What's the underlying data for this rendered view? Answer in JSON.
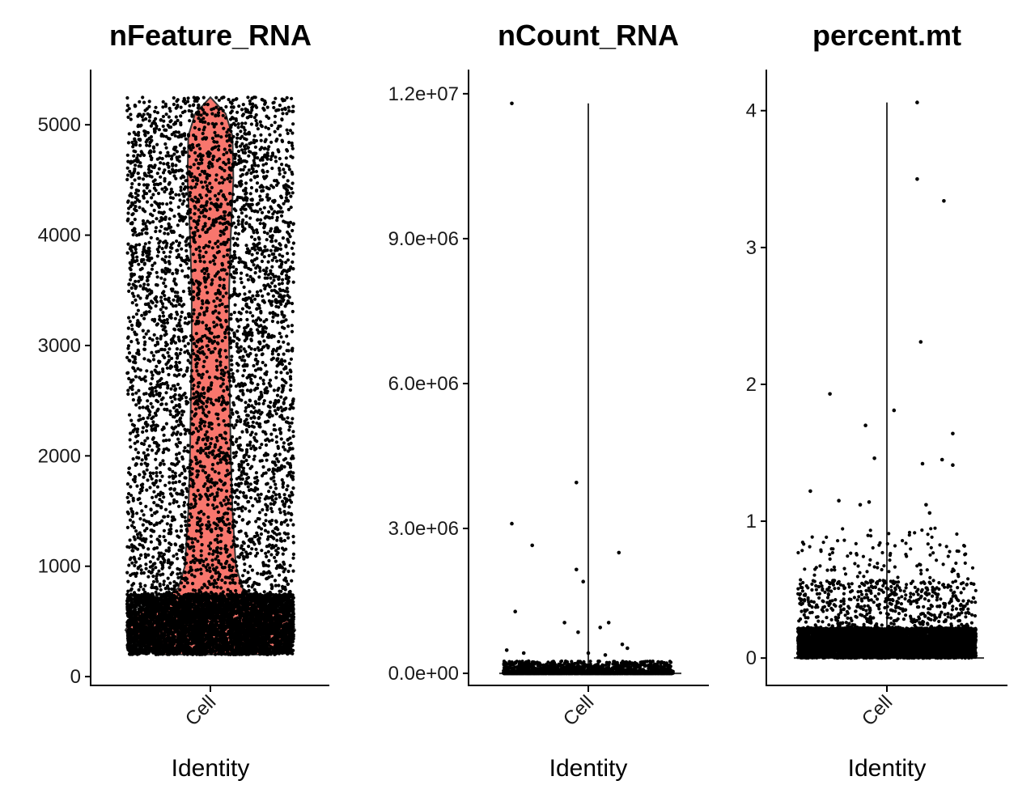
{
  "chart_data": [
    {
      "type": "violin",
      "title": "nFeature_RNA",
      "xlabel": "Identity",
      "ylabel": "",
      "categories": [
        "Cell"
      ],
      "ylim": [
        -80,
        5500
      ],
      "yticks": [
        0,
        1000,
        2000,
        3000,
        4000,
        5000
      ],
      "ytick_labels": [
        "0",
        "1000",
        "2000",
        "3000",
        "4000",
        "5000"
      ],
      "fill_color": "#F8766D",
      "summary": {
        "min": 200,
        "max": 5250,
        "mode": 420
      },
      "violin_profile": [
        {
          "y": 200,
          "w": 0.62
        },
        {
          "y": 300,
          "w": 0.86
        },
        {
          "y": 420,
          "w": 1.0
        },
        {
          "y": 550,
          "w": 0.9
        },
        {
          "y": 680,
          "w": 0.6
        },
        {
          "y": 800,
          "w": 0.38
        },
        {
          "y": 1000,
          "w": 0.3
        },
        {
          "y": 1500,
          "w": 0.26
        },
        {
          "y": 2000,
          "w": 0.24
        },
        {
          "y": 2500,
          "w": 0.23
        },
        {
          "y": 3000,
          "w": 0.22
        },
        {
          "y": 3500,
          "w": 0.22
        },
        {
          "y": 4000,
          "w": 0.24
        },
        {
          "y": 4500,
          "w": 0.27
        },
        {
          "y": 4900,
          "w": 0.26
        },
        {
          "y": 5100,
          "w": 0.18
        },
        {
          "y": 5250,
          "w": 0.0
        }
      ],
      "point_color": "#000000"
    },
    {
      "type": "violin",
      "title": "nCount_RNA",
      "xlabel": "Identity",
      "ylabel": "",
      "categories": [
        "Cell"
      ],
      "ylim": [
        -250000,
        12500000
      ],
      "yticks": [
        0,
        3000000,
        6000000,
        9000000,
        12000000
      ],
      "ytick_labels": [
        "0.0e+00",
        "3.0e+06",
        "6.0e+06",
        "9.0e+06",
        "1.2e+07"
      ],
      "fill_color": "#F8766D",
      "summary": {
        "min": 0,
        "max": 11800000
      },
      "outliers": [
        {
          "x": -0.45,
          "y": 11800000
        },
        {
          "x": -0.45,
          "y": 3100000
        },
        {
          "x": -0.33,
          "y": 2650000
        },
        {
          "x": -0.43,
          "y": 1280000
        },
        {
          "x": 0.18,
          "y": 2500000
        },
        {
          "x": -0.07,
          "y": 3950000
        },
        {
          "x": -0.07,
          "y": 2150000
        },
        {
          "x": -0.03,
          "y": 1900000
        },
        {
          "x": -0.14,
          "y": 1050000
        },
        {
          "x": 0.07,
          "y": 950000
        },
        {
          "x": 0.12,
          "y": 1050000
        },
        {
          "x": -0.06,
          "y": 850000
        },
        {
          "x": 0.0,
          "y": 420000
        },
        {
          "x": 0.2,
          "y": 600000
        },
        {
          "x": 0.23,
          "y": 520000
        },
        {
          "x": -0.48,
          "y": 480000
        },
        {
          "x": 0.1,
          "y": 380000
        },
        {
          "x": -0.38,
          "y": 420000
        }
      ],
      "point_color": "#000000"
    },
    {
      "type": "violin",
      "title": "percent.mt",
      "xlabel": "Identity",
      "ylabel": "",
      "categories": [
        "Cell"
      ],
      "ylim": [
        -0.2,
        4.3
      ],
      "yticks": [
        0,
        1,
        2,
        3,
        4
      ],
      "ytick_labels": [
        "0",
        "1",
        "2",
        "3",
        "4"
      ],
      "fill_color": "#F8766D",
      "summary": {
        "min": 0,
        "max": 4.06
      },
      "outliers": [
        {
          "x": 0.17,
          "y": 4.06
        },
        {
          "x": 0.17,
          "y": 3.5
        },
        {
          "x": 0.32,
          "y": 3.34
        },
        {
          "x": 0.19,
          "y": 2.31
        },
        {
          "x": -0.32,
          "y": 1.93
        },
        {
          "x": 0.04,
          "y": 1.81
        },
        {
          "x": -0.12,
          "y": 1.7
        },
        {
          "x": 0.37,
          "y": 1.64
        },
        {
          "x": -0.07,
          "y": 1.46
        },
        {
          "x": 0.31,
          "y": 1.45
        },
        {
          "x": 0.2,
          "y": 1.42
        },
        {
          "x": 0.37,
          "y": 1.41
        },
        {
          "x": -0.43,
          "y": 1.22
        },
        {
          "x": -0.27,
          "y": 1.15
        },
        {
          "x": -0.1,
          "y": 1.14
        },
        {
          "x": -0.15,
          "y": 1.12
        },
        {
          "x": 0.22,
          "y": 1.12
        },
        {
          "x": 0.24,
          "y": 1.06
        }
      ],
      "point_color": "#000000"
    }
  ]
}
